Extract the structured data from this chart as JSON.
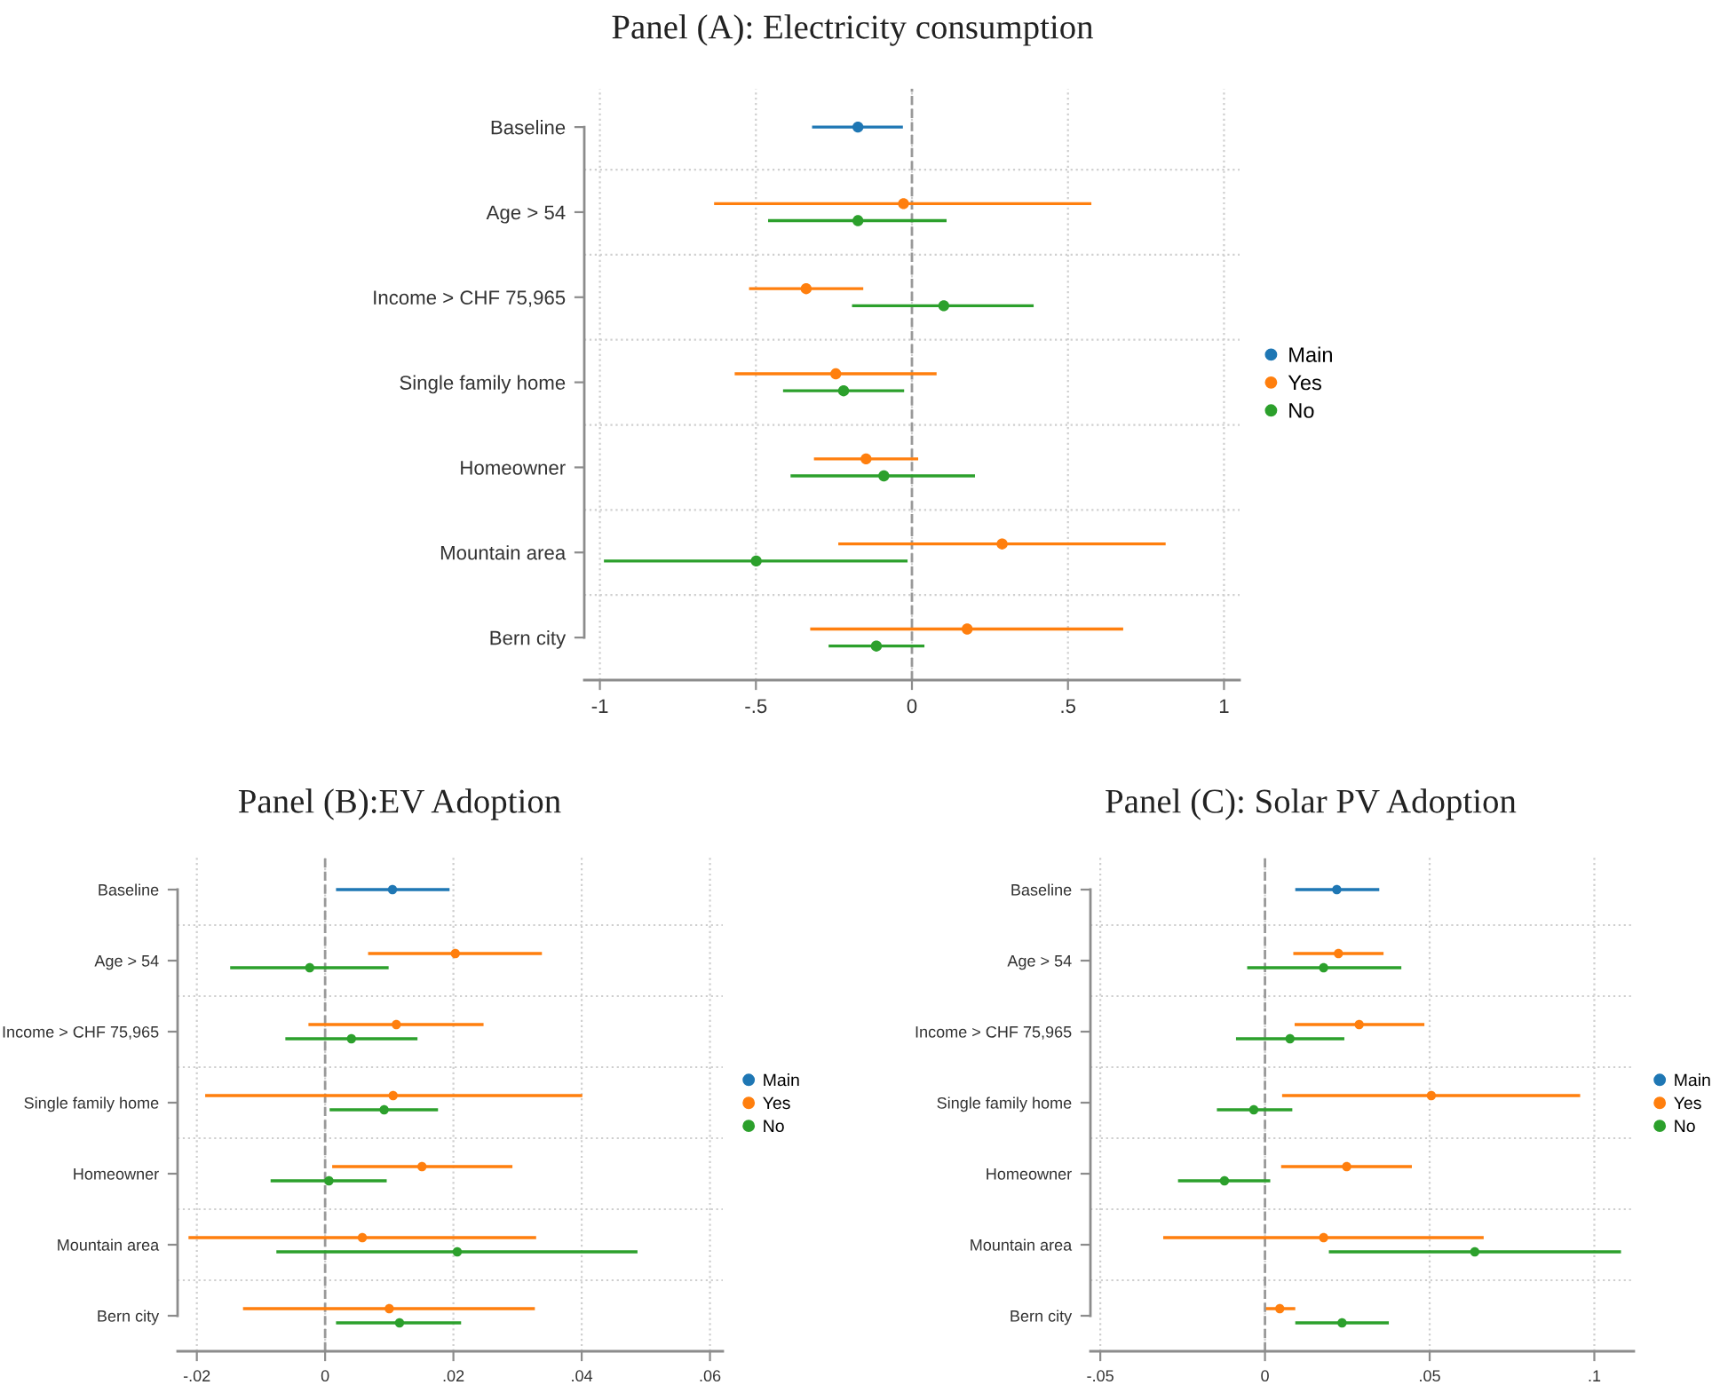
{
  "chart_data": [
    {
      "type": "scatter",
      "orientation": "horizontal",
      "title": "Panel (A): Electricity consumption",
      "categories": [
        "Baseline",
        "Age > 54",
        "Income > CHF 75,965",
        "Single family home",
        "Homeowner",
        "Mountain area",
        "Bern city"
      ],
      "series": [
        {
          "name": "Main",
          "color": "#1f77b4",
          "values": [
            -0.173,
            null,
            null,
            null,
            null,
            null,
            null
          ],
          "errors": [
            [
              -0.32,
              -0.029
            ],
            null,
            null,
            null,
            null,
            null,
            null
          ]
        },
        {
          "name": "Yes",
          "color": "#ff7f0e",
          "values": [
            null,
            -0.027,
            -0.339,
            -0.244,
            -0.147,
            0.289,
            0.177
          ],
          "errors": [
            null,
            [
              -0.634,
              0.575
            ],
            [
              -0.522,
              -0.156
            ],
            [
              -0.568,
              0.079
            ],
            [
              -0.314,
              0.02
            ],
            [
              -0.236,
              0.813
            ],
            [
              -0.326,
              0.677
            ]
          ]
        },
        {
          "name": "No",
          "color": "#2ca02c",
          "values": [
            null,
            -0.173,
            0.102,
            -0.219,
            -0.09,
            -0.499,
            -0.114
          ],
          "errors": [
            null,
            [
              -0.461,
              0.111
            ],
            [
              -0.192,
              0.39
            ],
            [
              -0.413,
              -0.025
            ],
            [
              -0.389,
              0.202
            ],
            [
              -0.987,
              -0.014
            ],
            [
              -0.267,
              0.04
            ]
          ]
        }
      ],
      "xlim": [
        -1.05,
        1.05
      ],
      "xticks": [
        -1,
        {
          "value": -0.5,
          "label": "-.5"
        },
        0,
        {
          "value": 0.5,
          "label": ".5"
        },
        1
      ],
      "ref_lines": [
        {
          "axis": "x",
          "value": 0,
          "color": "#999999",
          "line_style": "dashed"
        }
      ],
      "grid": true,
      "legend": "right",
      "marker": "circle"
    },
    {
      "type": "scatter",
      "orientation": "horizontal",
      "title": "Panel (B):EV Adoption",
      "categories": [
        "Baseline",
        "Age > 54",
        "Income > CHF 75,965",
        "Single family home",
        "Homeowner",
        "Mountain area",
        "Bern city"
      ],
      "series": [
        {
          "name": "Main",
          "color": "#1f77b4",
          "values": [
            0.0105,
            null,
            null,
            null,
            null,
            null,
            null
          ],
          "errors": [
            [
              0.0017,
              0.0194
            ],
            null,
            null,
            null,
            null,
            null,
            null
          ]
        },
        {
          "name": "Yes",
          "color": "#ff7f0e",
          "values": [
            null,
            0.0203,
            0.0111,
            0.0106,
            0.0151,
            0.0058,
            0.01
          ],
          "errors": [
            null,
            [
              0.0067,
              0.0338
            ],
            [
              -0.0026,
              0.0247
            ],
            [
              -0.0187,
              0.0401
            ],
            [
              0.0011,
              0.0292
            ],
            [
              -0.0213,
              0.0329
            ],
            [
              -0.0128,
              0.0327
            ]
          ]
        },
        {
          "name": "No",
          "color": "#2ca02c",
          "values": [
            null,
            -0.0024,
            0.0041,
            0.0092,
            0.0006,
            0.0206,
            0.0116
          ],
          "errors": [
            null,
            [
              -0.0148,
              0.0099
            ],
            [
              -0.0062,
              0.0144
            ],
            [
              0.0007,
              0.0176
            ],
            [
              -0.0085,
              0.0096
            ],
            [
              -0.0076,
              0.0487
            ],
            [
              0.0017,
              0.0212
            ]
          ]
        }
      ],
      "xlim": [
        -0.023,
        0.062
      ],
      "xticks": [
        {
          "value": -0.02,
          "label": "-.02"
        },
        0,
        {
          "value": 0.02,
          "label": ".02"
        },
        {
          "value": 0.04,
          "label": ".04"
        },
        {
          "value": 0.06,
          "label": ".06"
        }
      ],
      "ref_lines": [
        {
          "axis": "x",
          "value": 0,
          "color": "#999999",
          "line_style": "dashed"
        }
      ],
      "grid": true,
      "legend": "right",
      "marker": "circle"
    },
    {
      "type": "scatter",
      "orientation": "horizontal",
      "title": "Panel (C): Solar PV Adoption",
      "categories": [
        "Baseline",
        "Age > 54",
        "Income > CHF 75,965",
        "Single family home",
        "Homeowner",
        "Mountain area",
        "Bern city"
      ],
      "series": [
        {
          "name": "Main",
          "color": "#1f77b4",
          "values": [
            0.0218,
            null,
            null,
            null,
            null,
            null,
            null
          ],
          "errors": [
            [
              0.0092,
              0.0347
            ],
            null,
            null,
            null,
            null,
            null,
            null
          ]
        },
        {
          "name": "Yes",
          "color": "#ff7f0e",
          "values": [
            null,
            0.0223,
            0.0286,
            0.0505,
            0.0248,
            0.0178,
            0.0045
          ],
          "errors": [
            null,
            [
              0.0086,
              0.036
            ],
            [
              0.009,
              0.0484
            ],
            [
              0.0052,
              0.0957
            ],
            [
              0.0049,
              0.0446
            ],
            [
              -0.0309,
              0.0664
            ],
            [
              0.0003,
              0.0092
            ]
          ]
        },
        {
          "name": "No",
          "color": "#2ca02c",
          "values": [
            null,
            0.0178,
            0.0076,
            -0.0034,
            -0.0123,
            0.0637,
            0.0234
          ],
          "errors": [
            null,
            [
              -0.0054,
              0.0414
            ],
            [
              -0.0088,
              0.0241
            ],
            [
              -0.0146,
              0.0083
            ],
            [
              -0.0264,
              0.0016
            ],
            [
              0.0194,
              0.1081
            ],
            [
              0.0092,
              0.0376
            ]
          ]
        }
      ],
      "xlim": [
        -0.053,
        0.112
      ],
      "xticks": [
        {
          "value": -0.05,
          "label": "-.05"
        },
        0,
        {
          "value": 0.05,
          "label": ".05"
        },
        {
          "value": 0.1,
          "label": ".1"
        }
      ],
      "ref_lines": [
        {
          "axis": "x",
          "value": 0,
          "color": "#999999",
          "line_style": "dashed"
        }
      ],
      "grid": true,
      "legend": "right",
      "marker": "circle"
    }
  ]
}
